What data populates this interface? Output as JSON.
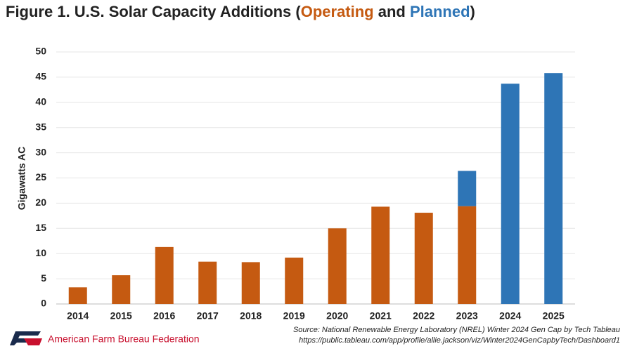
{
  "chart_data": {
    "type": "stacked_bar",
    "title_parts": [
      "Figure 1. U.S. Solar Capacity Additions (",
      " and ",
      ")"
    ],
    "y_label": "Gigawatts AC",
    "categories": [
      "2014",
      "2015",
      "2016",
      "2017",
      "2018",
      "2019",
      "2020",
      "2021",
      "2022",
      "2023",
      "2024",
      "2025"
    ],
    "series": [
      {
        "name": "Operating",
        "color": "#c55a11",
        "values": [
          3.3,
          5.7,
          11.3,
          8.4,
          8.3,
          9.2,
          15.0,
          19.3,
          18.1,
          19.4,
          null,
          null
        ]
      },
      {
        "name": "Planned",
        "color": "#2e75b6",
        "values": [
          null,
          null,
          null,
          null,
          null,
          null,
          null,
          null,
          null,
          7.0,
          43.7,
          45.8
        ]
      }
    ],
    "ylim": [
      0,
      50
    ],
    "yticks": [
      0,
      5,
      10,
      15,
      20,
      25,
      30,
      35,
      40,
      45,
      50
    ],
    "grid": true,
    "source": "Source: National Renewable Energy Laboratory (NREL) Winter 2024 Gen Cap by Tech Tableau",
    "source_url": "https://public.tableau.com/app/profile/allie.jackson/viz/Winter2024GenCapbyTech/Dashboard1",
    "organization": "American Farm Bureau Federation"
  }
}
